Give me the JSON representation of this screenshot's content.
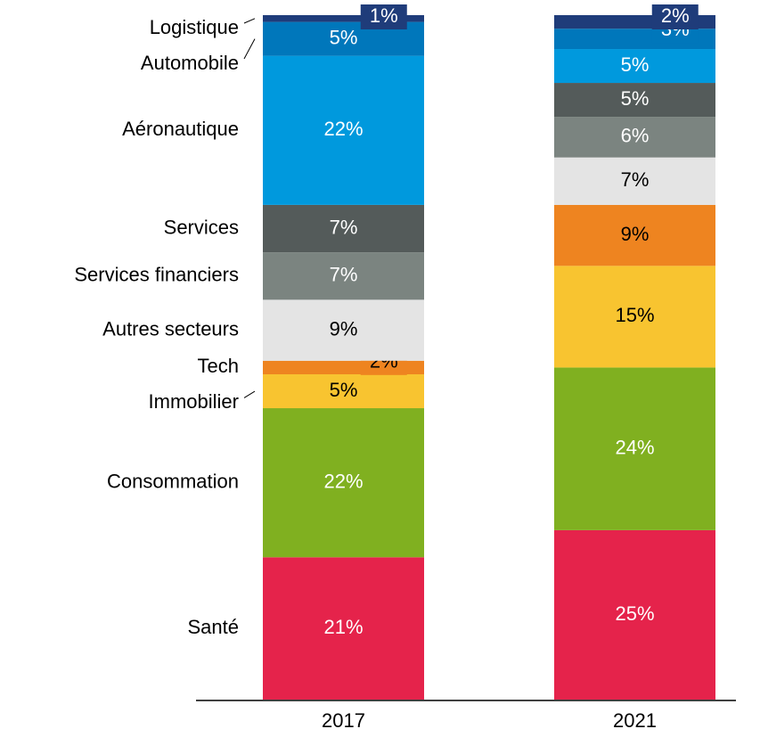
{
  "chart_data": {
    "type": "stacked_bar",
    "categories": [
      "2017",
      "2021"
    ],
    "series": [
      {
        "name": "Santé",
        "color": "#e5234b",
        "values": [
          21,
          25
        ],
        "value_labels": [
          "21%",
          "25%"
        ]
      },
      {
        "name": "Consommation",
        "color": "#80b020",
        "values": [
          22,
          24
        ],
        "value_labels": [
          "22%",
          "24%"
        ]
      },
      {
        "name": "Immobilier",
        "color": "#f8c430",
        "values": [
          5,
          15
        ],
        "value_labels": [
          "5%",
          "15%"
        ]
      },
      {
        "name": "Tech",
        "color": "#ee8420",
        "values": [
          2,
          9
        ],
        "value_labels": [
          "2%",
          "9%"
        ]
      },
      {
        "name": "Autres secteurs",
        "color": "#e4e4e4",
        "values": [
          9,
          7
        ],
        "value_labels": [
          "9%",
          "7%"
        ]
      },
      {
        "name": "Services financiers",
        "color": "#7b8480",
        "values": [
          7,
          6
        ],
        "value_labels": [
          "7%",
          "6%"
        ]
      },
      {
        "name": "Services",
        "color": "#545b5a",
        "values": [
          7,
          5
        ],
        "value_labels": [
          "7%",
          "5%"
        ]
      },
      {
        "name": "Aéronautique",
        "color": "#0099dd",
        "values": [
          22,
          5
        ],
        "value_labels": [
          "22%",
          "5%"
        ]
      },
      {
        "name": "Automobile",
        "color": "#0077bb",
        "values": [
          5,
          3
        ],
        "value_labels": [
          "5%",
          "3%"
        ]
      },
      {
        "name": "Logistique",
        "color": "#1f3c7a",
        "values": [
          1,
          2
        ],
        "value_labels": [
          "1%",
          "2%"
        ]
      }
    ]
  }
}
